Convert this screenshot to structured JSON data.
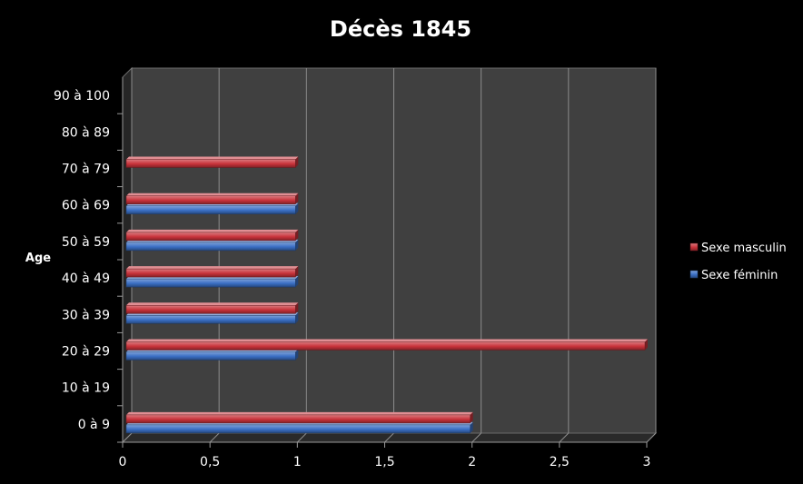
{
  "chart_data": {
    "type": "bar",
    "orientation": "horizontal",
    "title": "Décès 1845",
    "ylabel": "Age",
    "xlabel": "",
    "categories": [
      "0 à 9",
      "10 à 19",
      "20 à 29",
      "30 à 39",
      "40 à 49",
      "50 à 59",
      "60 à 69",
      "70 à 79",
      "80 à 89",
      "90 à 100"
    ],
    "series": [
      {
        "name": "Sexe féminin",
        "color": "#3a6fc4",
        "values": [
          2,
          0,
          1,
          1,
          1,
          1,
          1,
          0,
          0,
          0
        ]
      },
      {
        "name": "Sexe masculin",
        "color": "#c8323a",
        "values": [
          2,
          0,
          3,
          1,
          1,
          1,
          1,
          1,
          0,
          0
        ]
      }
    ],
    "legend_order": [
      "Sexe masculin",
      "Sexe féminin"
    ],
    "xlim": [
      0,
      3
    ],
    "xticks": [
      0,
      0.5,
      1,
      1.5,
      2,
      2.5,
      3
    ],
    "xtick_labels": [
      "0",
      "0,5",
      "1",
      "1,5",
      "2",
      "2,5",
      "3"
    ],
    "grid": true,
    "legend_position": "right",
    "style": "3d",
    "background_color": "#000000",
    "plot_area_color": "#404040",
    "text_color": "#ffffff"
  }
}
